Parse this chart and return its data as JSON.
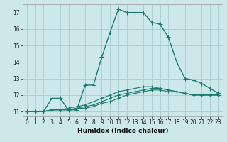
{
  "xlabel": "Humidex (Indice chaleur)",
  "bg_color": "#cce8e8",
  "grid_color": "#aacccc",
  "line_color": "#1a7a6e",
  "xlim": [
    -0.5,
    23.5
  ],
  "ylim": [
    10.7,
    17.5
  ],
  "yticks": [
    11,
    12,
    13,
    14,
    15,
    16,
    17
  ],
  "xticks": [
    0,
    1,
    2,
    3,
    4,
    5,
    6,
    7,
    8,
    9,
    10,
    11,
    12,
    13,
    14,
    15,
    16,
    17,
    18,
    19,
    20,
    21,
    22,
    23
  ],
  "series1": [
    [
      0,
      11.0
    ],
    [
      1,
      11.0
    ],
    [
      2,
      11.0
    ],
    [
      3,
      11.8
    ],
    [
      4,
      11.8
    ],
    [
      5,
      11.1
    ],
    [
      6,
      11.1
    ],
    [
      7,
      12.6
    ],
    [
      8,
      12.6
    ],
    [
      9,
      14.3
    ],
    [
      10,
      15.8
    ],
    [
      11,
      17.2
    ],
    [
      12,
      17.0
    ],
    [
      13,
      17.0
    ],
    [
      14,
      17.0
    ],
    [
      15,
      16.4
    ],
    [
      16,
      16.3
    ],
    [
      17,
      15.5
    ],
    [
      18,
      14.0
    ],
    [
      19,
      13.0
    ],
    [
      20,
      12.9
    ],
    [
      21,
      12.7
    ],
    [
      22,
      12.4
    ],
    [
      23,
      12.1
    ]
  ],
  "series2": [
    [
      0,
      11.0
    ],
    [
      1,
      11.0
    ],
    [
      2,
      11.0
    ],
    [
      3,
      11.1
    ],
    [
      4,
      11.1
    ],
    [
      5,
      11.1
    ],
    [
      6,
      11.2
    ],
    [
      7,
      11.2
    ],
    [
      8,
      11.3
    ],
    [
      9,
      11.5
    ],
    [
      10,
      11.6
    ],
    [
      11,
      11.8
    ],
    [
      12,
      12.0
    ],
    [
      13,
      12.1
    ],
    [
      14,
      12.2
    ],
    [
      15,
      12.3
    ],
    [
      16,
      12.3
    ],
    [
      17,
      12.2
    ],
    [
      18,
      12.2
    ],
    [
      19,
      12.1
    ],
    [
      20,
      12.0
    ],
    [
      21,
      12.0
    ],
    [
      22,
      12.0
    ],
    [
      23,
      12.0
    ]
  ],
  "series3": [
    [
      0,
      11.0
    ],
    [
      1,
      11.0
    ],
    [
      2,
      11.0
    ],
    [
      3,
      11.1
    ],
    [
      4,
      11.1
    ],
    [
      5,
      11.1
    ],
    [
      6,
      11.2
    ],
    [
      7,
      11.3
    ],
    [
      8,
      11.4
    ],
    [
      9,
      11.6
    ],
    [
      10,
      11.8
    ],
    [
      11,
      12.0
    ],
    [
      12,
      12.1
    ],
    [
      13,
      12.2
    ],
    [
      14,
      12.3
    ],
    [
      15,
      12.4
    ],
    [
      16,
      12.4
    ],
    [
      17,
      12.3
    ],
    [
      18,
      12.2
    ],
    [
      19,
      12.1
    ],
    [
      20,
      12.0
    ],
    [
      21,
      12.0
    ],
    [
      22,
      12.0
    ],
    [
      23,
      12.0
    ]
  ],
  "series4": [
    [
      0,
      11.0
    ],
    [
      1,
      11.0
    ],
    [
      2,
      11.0
    ],
    [
      3,
      11.1
    ],
    [
      4,
      11.1
    ],
    [
      5,
      11.2
    ],
    [
      6,
      11.3
    ],
    [
      7,
      11.4
    ],
    [
      8,
      11.6
    ],
    [
      9,
      11.8
    ],
    [
      10,
      12.0
    ],
    [
      11,
      12.2
    ],
    [
      12,
      12.3
    ],
    [
      13,
      12.4
    ],
    [
      14,
      12.5
    ],
    [
      15,
      12.5
    ],
    [
      16,
      12.4
    ],
    [
      17,
      12.3
    ],
    [
      18,
      12.2
    ],
    [
      19,
      12.1
    ],
    [
      20,
      12.0
    ],
    [
      21,
      12.0
    ],
    [
      22,
      12.0
    ],
    [
      23,
      12.0
    ]
  ]
}
